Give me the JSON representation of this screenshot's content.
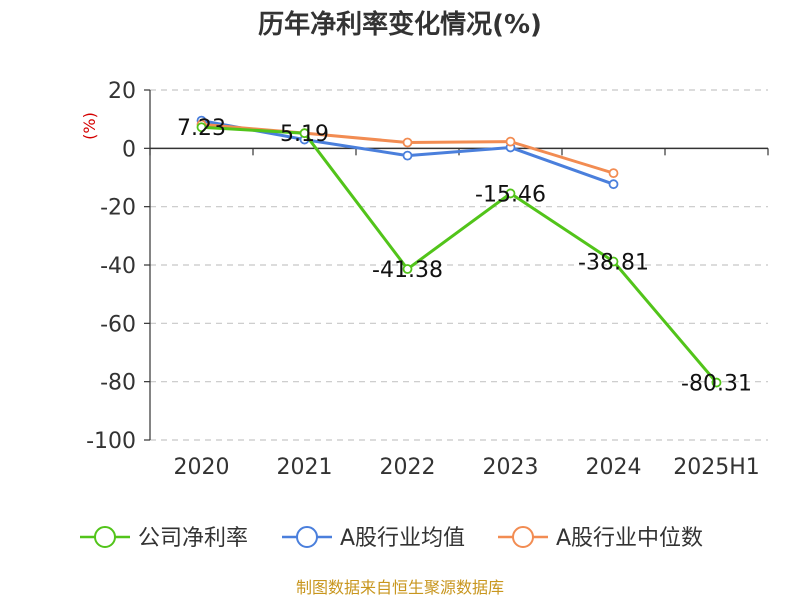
{
  "chart_data": {
    "type": "line",
    "title": "历年净利率变化情况(%)",
    "ylabel": "(%)",
    "categories": [
      "2020",
      "2021",
      "2022",
      "2023",
      "2024",
      "2025H1"
    ],
    "ylim": [
      -100,
      20
    ],
    "yticks": [
      "20",
      "0",
      "-20",
      "-40",
      "-60",
      "-80",
      "-100"
    ],
    "grid": true,
    "legend_position": "bottom",
    "series": [
      {
        "name": "公司净利率",
        "color": "#52c41a",
        "values": [
          7.23,
          5.19,
          -41.38,
          -15.46,
          -38.81,
          -80.31
        ],
        "labels": [
          "7.23",
          "5.19",
          "-41.38",
          "-15.46",
          "-38.81",
          "-80.31"
        ]
      },
      {
        "name": "A股行业均值",
        "color": "#4a7fdc",
        "values": [
          9.5,
          3.0,
          -2.5,
          0.3,
          -12.3,
          null
        ]
      },
      {
        "name": "A股行业中位数",
        "color": "#f28c52",
        "values": [
          8.2,
          5.2,
          2.0,
          2.3,
          -8.5,
          null
        ]
      }
    ],
    "source": "制图数据来自恒生聚源数据库"
  }
}
